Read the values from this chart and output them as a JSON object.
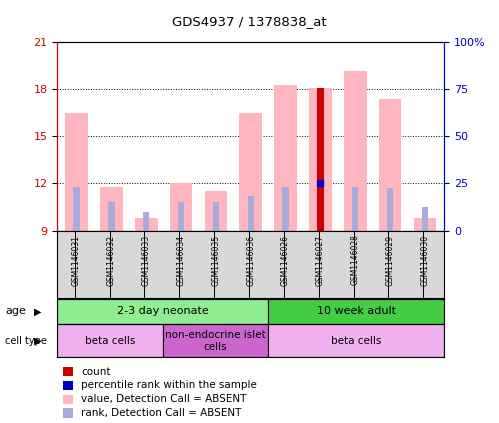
{
  "title": "GDS4937 / 1378838_at",
  "samples": [
    "GSM1146031",
    "GSM1146032",
    "GSM1146033",
    "GSM1146034",
    "GSM1146035",
    "GSM1146036",
    "GSM1146026",
    "GSM1146027",
    "GSM1146028",
    "GSM1146029",
    "GSM1146030"
  ],
  "value_absent": [
    16.5,
    11.8,
    9.8,
    12.0,
    11.5,
    16.5,
    18.3,
    18.1,
    19.2,
    17.4,
    9.8
  ],
  "rank_absent": [
    11.8,
    10.8,
    10.2,
    10.8,
    10.8,
    11.2,
    11.8,
    11.9,
    11.8,
    11.7,
    10.5
  ],
  "count_present": [
    null,
    null,
    null,
    null,
    null,
    null,
    null,
    18.1,
    null,
    null,
    null
  ],
  "rank_present": [
    null,
    null,
    null,
    null,
    null,
    null,
    null,
    12.0,
    null,
    null,
    null
  ],
  "ylim_left": [
    9,
    21
  ],
  "ylim_right": [
    0,
    100
  ],
  "yticks_left": [
    9,
    12,
    15,
    18,
    21
  ],
  "yticks_right": [
    0,
    25,
    50,
    75,
    100
  ],
  "ytick_labels_right": [
    "0",
    "25",
    "50",
    "75",
    "100%"
  ],
  "age_groups": [
    {
      "label": "2-3 day neonate",
      "start": 0,
      "end": 6,
      "color": "#90EE90"
    },
    {
      "label": "10 week adult",
      "start": 6,
      "end": 11,
      "color": "#44CC44"
    }
  ],
  "cell_type_groups": [
    {
      "label": "beta cells",
      "start": 0,
      "end": 3,
      "color": "#EEB0EE"
    },
    {
      "label": "non-endocrine islet\ncells",
      "start": 3,
      "end": 6,
      "color": "#CC66CC"
    },
    {
      "label": "beta cells",
      "start": 6,
      "end": 11,
      "color": "#EEB0EE"
    }
  ],
  "legend_items": [
    {
      "color": "#CC0000",
      "label": "count"
    },
    {
      "color": "#0000CC",
      "label": "percentile rank within the sample"
    },
    {
      "color": "#FFB6C1",
      "label": "value, Detection Call = ABSENT"
    },
    {
      "color": "#AAAADD",
      "label": "rank, Detection Call = ABSENT"
    }
  ],
  "absent_bar_color": "#FFB6C1",
  "absent_rank_color": "#AAAADD",
  "present_bar_color": "#CC0000",
  "present_rank_color": "#0000CC",
  "bg_color": "#FFFFFF",
  "left_axis_color": "#CC0000",
  "right_axis_color": "#0000CC",
  "sample_box_color": "#D8D8D8"
}
